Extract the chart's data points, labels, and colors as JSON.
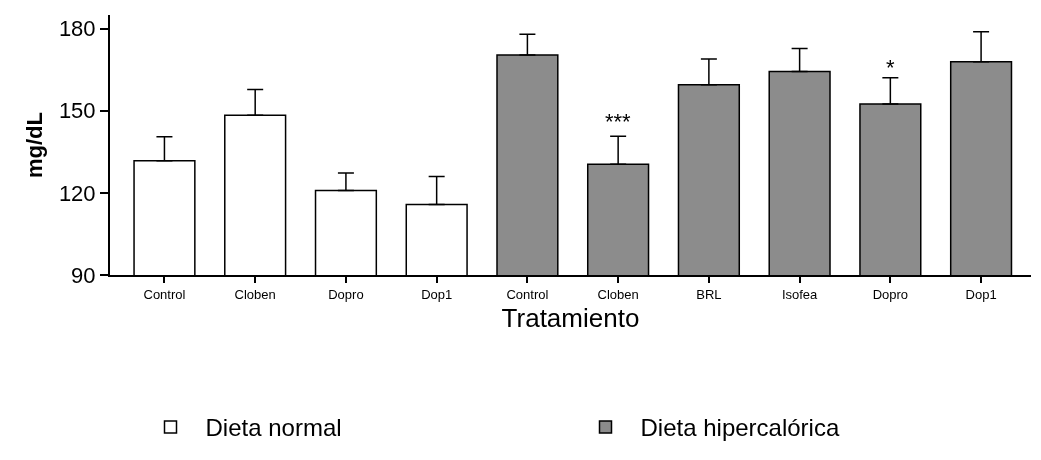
{
  "chart_data": {
    "type": "bar",
    "xlabel": "Tratamiento",
    "ylabel": "mg/dL",
    "categories": [
      "Control",
      "Cloben",
      "Dopro",
      "Dop1",
      "Control",
      "Cloben",
      "BRL",
      "Isofea",
      "Dopro",
      "Dop1"
    ],
    "series": [
      {
        "name": "Dieta normal",
        "color": "#ffffff",
        "values": [
          131.7,
          148.4,
          120.9,
          115.8,
          null,
          null,
          null,
          null,
          null,
          null
        ],
        "errors": [
          [
            131.7,
            140.5
          ],
          [
            148.4,
            157.8
          ],
          [
            120.9,
            127.3
          ],
          [
            115.8,
            126.0
          ],
          null,
          null,
          null,
          null,
          null,
          null
        ]
      },
      {
        "name": "Dieta hipercalórica",
        "color": "#8c8c8c",
        "values": [
          null,
          null,
          null,
          null,
          170.4,
          130.5,
          159.5,
          164.4,
          152.5,
          167.9
        ],
        "errors": [
          null,
          null,
          null,
          null,
          [
            170.4,
            178.0
          ],
          [
            130.5,
            140.7
          ],
          [
            159.5,
            168.9
          ],
          [
            164.4,
            172.8
          ],
          [
            152.5,
            162.1
          ],
          [
            167.9,
            178.9
          ]
        ]
      }
    ],
    "ylim": [
      90,
      185
    ],
    "yticks": [
      90,
      120,
      150,
      180
    ],
    "grid": false,
    "legend": "bottom",
    "annotations": [
      "***",
      "*"
    ]
  }
}
